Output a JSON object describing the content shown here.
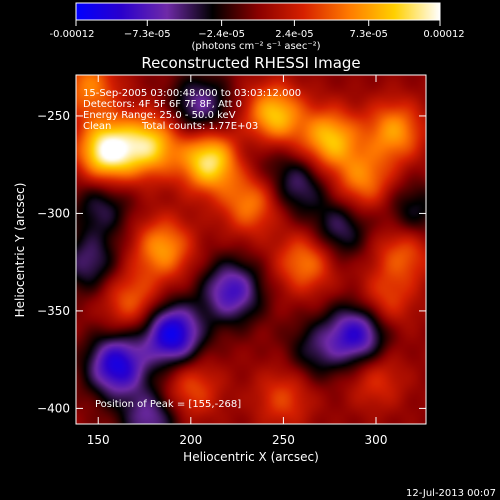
{
  "chart_data": {
    "type": "heatmap",
    "title": "Reconstructed RHESSI Image",
    "xlabel": "Heliocentric X (arcsec)",
    "ylabel": "Heliocentric Y (arcsec)",
    "xlim": [
      138,
      327
    ],
    "ylim": [
      -408,
      -229
    ],
    "x_ticks": [
      150,
      200,
      250,
      300
    ],
    "y_ticks": [
      -250,
      -300,
      -350,
      -400
    ],
    "colorbar": {
      "min": -0.00012,
      "max": 0.00012,
      "tick_labels": [
        "-0.00012",
        "−7.3e-05",
        "−2.4e-05",
        "2.4e-05",
        "7.3e-05",
        "0.00012"
      ],
      "tick_values": [
        -0.00012,
        -7.3e-05,
        -2.4e-05,
        2.4e-05,
        7.3e-05,
        0.00012
      ],
      "unit_label": "(photons cm⁻² s⁻¹ asec⁻²)"
    },
    "annotations": {
      "time_range": "15-Sep-2005 03:00:48.000 to 03:03:12.000",
      "detectors": "Detectors: 4F 5F 6F 7F 8F, Att 0",
      "energy_range": "Energy Range: 25.0 - 50.0 keV",
      "clean": "Clean",
      "total_counts": "Total counts: 1.77E+03",
      "peak": "Position of Peak = [155,-268]"
    },
    "blobs": [
      {
        "x": 155,
        "y": -268,
        "value": 0.00012
      },
      {
        "x": 210,
        "y": -273,
        "value": 0.000105
      },
      {
        "x": 178,
        "y": -265,
        "value": 9e-05
      },
      {
        "x": 245,
        "y": -250,
        "value": 9e-05
      },
      {
        "x": 275,
        "y": -262,
        "value": 8.5e-05
      },
      {
        "x": 310,
        "y": -258,
        "value": 7e-05
      },
      {
        "x": 232,
        "y": -295,
        "value": 6e-05
      },
      {
        "x": 293,
        "y": -283,
        "value": 6e-05
      },
      {
        "x": 185,
        "y": -318,
        "value": 7e-05
      },
      {
        "x": 168,
        "y": -345,
        "value": 5e-05
      },
      {
        "x": 262,
        "y": -325,
        "value": 6e-05
      },
      {
        "x": 315,
        "y": -320,
        "value": 5e-05
      },
      {
        "x": 305,
        "y": -345,
        "value": 4e-05
      },
      {
        "x": 200,
        "y": -390,
        "value": 4.5e-05
      },
      {
        "x": 250,
        "y": -395,
        "value": 4e-05
      },
      {
        "x": 300,
        "y": -385,
        "value": 3.5e-05
      },
      {
        "x": 148,
        "y": -300,
        "value": 4e-05
      },
      {
        "x": 145,
        "y": -235,
        "value": 6e-05
      },
      {
        "x": 150,
        "y": -298,
        "value": -8e-05
      },
      {
        "x": 205,
        "y": -245,
        "value": -6e-05
      },
      {
        "x": 258,
        "y": -285,
        "value": -5e-05
      },
      {
        "x": 222,
        "y": -340,
        "value": -8e-05
      },
      {
        "x": 190,
        "y": -362,
        "value": -0.00011
      },
      {
        "x": 160,
        "y": -378,
        "value": -0.0001
      },
      {
        "x": 145,
        "y": -325,
        "value": -5e-05
      },
      {
        "x": 290,
        "y": -362,
        "value": -9e-05
      },
      {
        "x": 280,
        "y": -308,
        "value": -5e-05
      },
      {
        "x": 178,
        "y": -405,
        "value": -6e-05
      },
      {
        "x": 268,
        "y": -370,
        "value": -4e-05
      },
      {
        "x": 320,
        "y": -300,
        "value": -4e-05
      },
      {
        "x": 238,
        "y": -268,
        "value": -2e-05
      }
    ]
  },
  "footer": {
    "timestamp": "12-Jul-2013 00:07"
  },
  "colors": {
    "background": "#000000",
    "foreground": "#ffffff",
    "map_stops": [
      "#0000ff",
      "#2a00cc",
      "#6f2aa8",
      "#000000",
      "#8a0000",
      "#d62000",
      "#ff7a00",
      "#ffd000",
      "#ffffff"
    ]
  }
}
